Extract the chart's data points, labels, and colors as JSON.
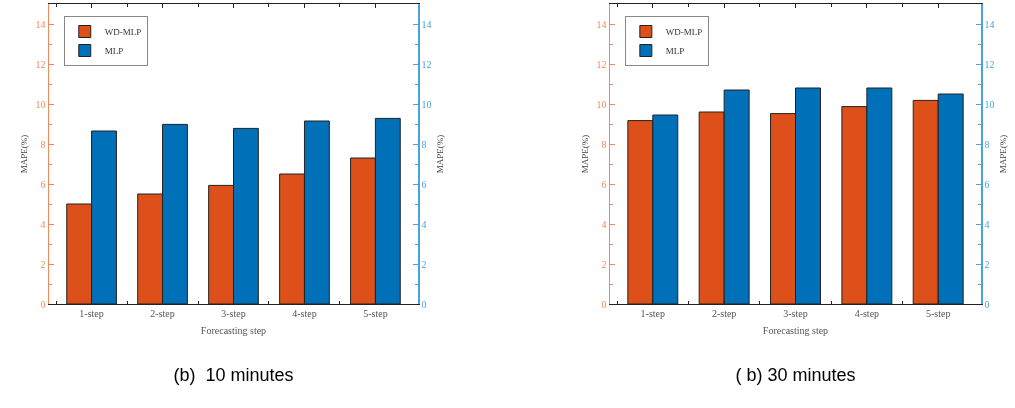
{
  "chart_data": [
    {
      "type": "bar",
      "title": "(b)  10 minutes",
      "xlabel": "Forecasting step",
      "ylabel": "MAPE(%)",
      "y2label": "MAPE(%)",
      "categories": [
        "1-step",
        "2-step",
        "3-step",
        "4-step",
        "5-step"
      ],
      "series": [
        {
          "name": "WD-MLP",
          "color": "#dd5019",
          "values": [
            5.0,
            5.5,
            5.93,
            6.5,
            7.3
          ]
        },
        {
          "name": "MLP",
          "color": "#0070b8",
          "values": [
            8.65,
            8.98,
            8.78,
            9.15,
            9.28
          ]
        }
      ],
      "ylim": [
        0,
        15
      ],
      "yticks": [
        0,
        2,
        4,
        6,
        8,
        10,
        12,
        14
      ],
      "y2lim": [
        0,
        15
      ],
      "y2ticks": [
        0,
        2,
        4,
        6,
        8,
        10,
        12,
        14
      ],
      "legend": "top left"
    },
    {
      "type": "bar",
      "title": "( b) 30 minutes",
      "xlabel": "Forecasting step",
      "ylabel": "MAPE(%)",
      "y2label": "MAPE(%)",
      "categories": [
        "1-step",
        "2-step",
        "3-step",
        "4-step",
        "5-step"
      ],
      "series": [
        {
          "name": "WD-MLP",
          "color": "#dd5019",
          "values": [
            9.17,
            9.6,
            9.52,
            9.87,
            10.18
          ]
        },
        {
          "name": "MLP",
          "color": "#0070b8",
          "values": [
            9.45,
            10.7,
            10.8,
            10.8,
            10.5
          ]
        }
      ],
      "ylim": [
        0,
        15
      ],
      "yticks": [
        0,
        2,
        4,
        6,
        8,
        10,
        12,
        14
      ],
      "y2lim": [
        0,
        15
      ],
      "y2ticks": [
        0,
        2,
        4,
        6,
        8,
        10,
        12,
        14
      ],
      "legend": "top left"
    }
  ]
}
